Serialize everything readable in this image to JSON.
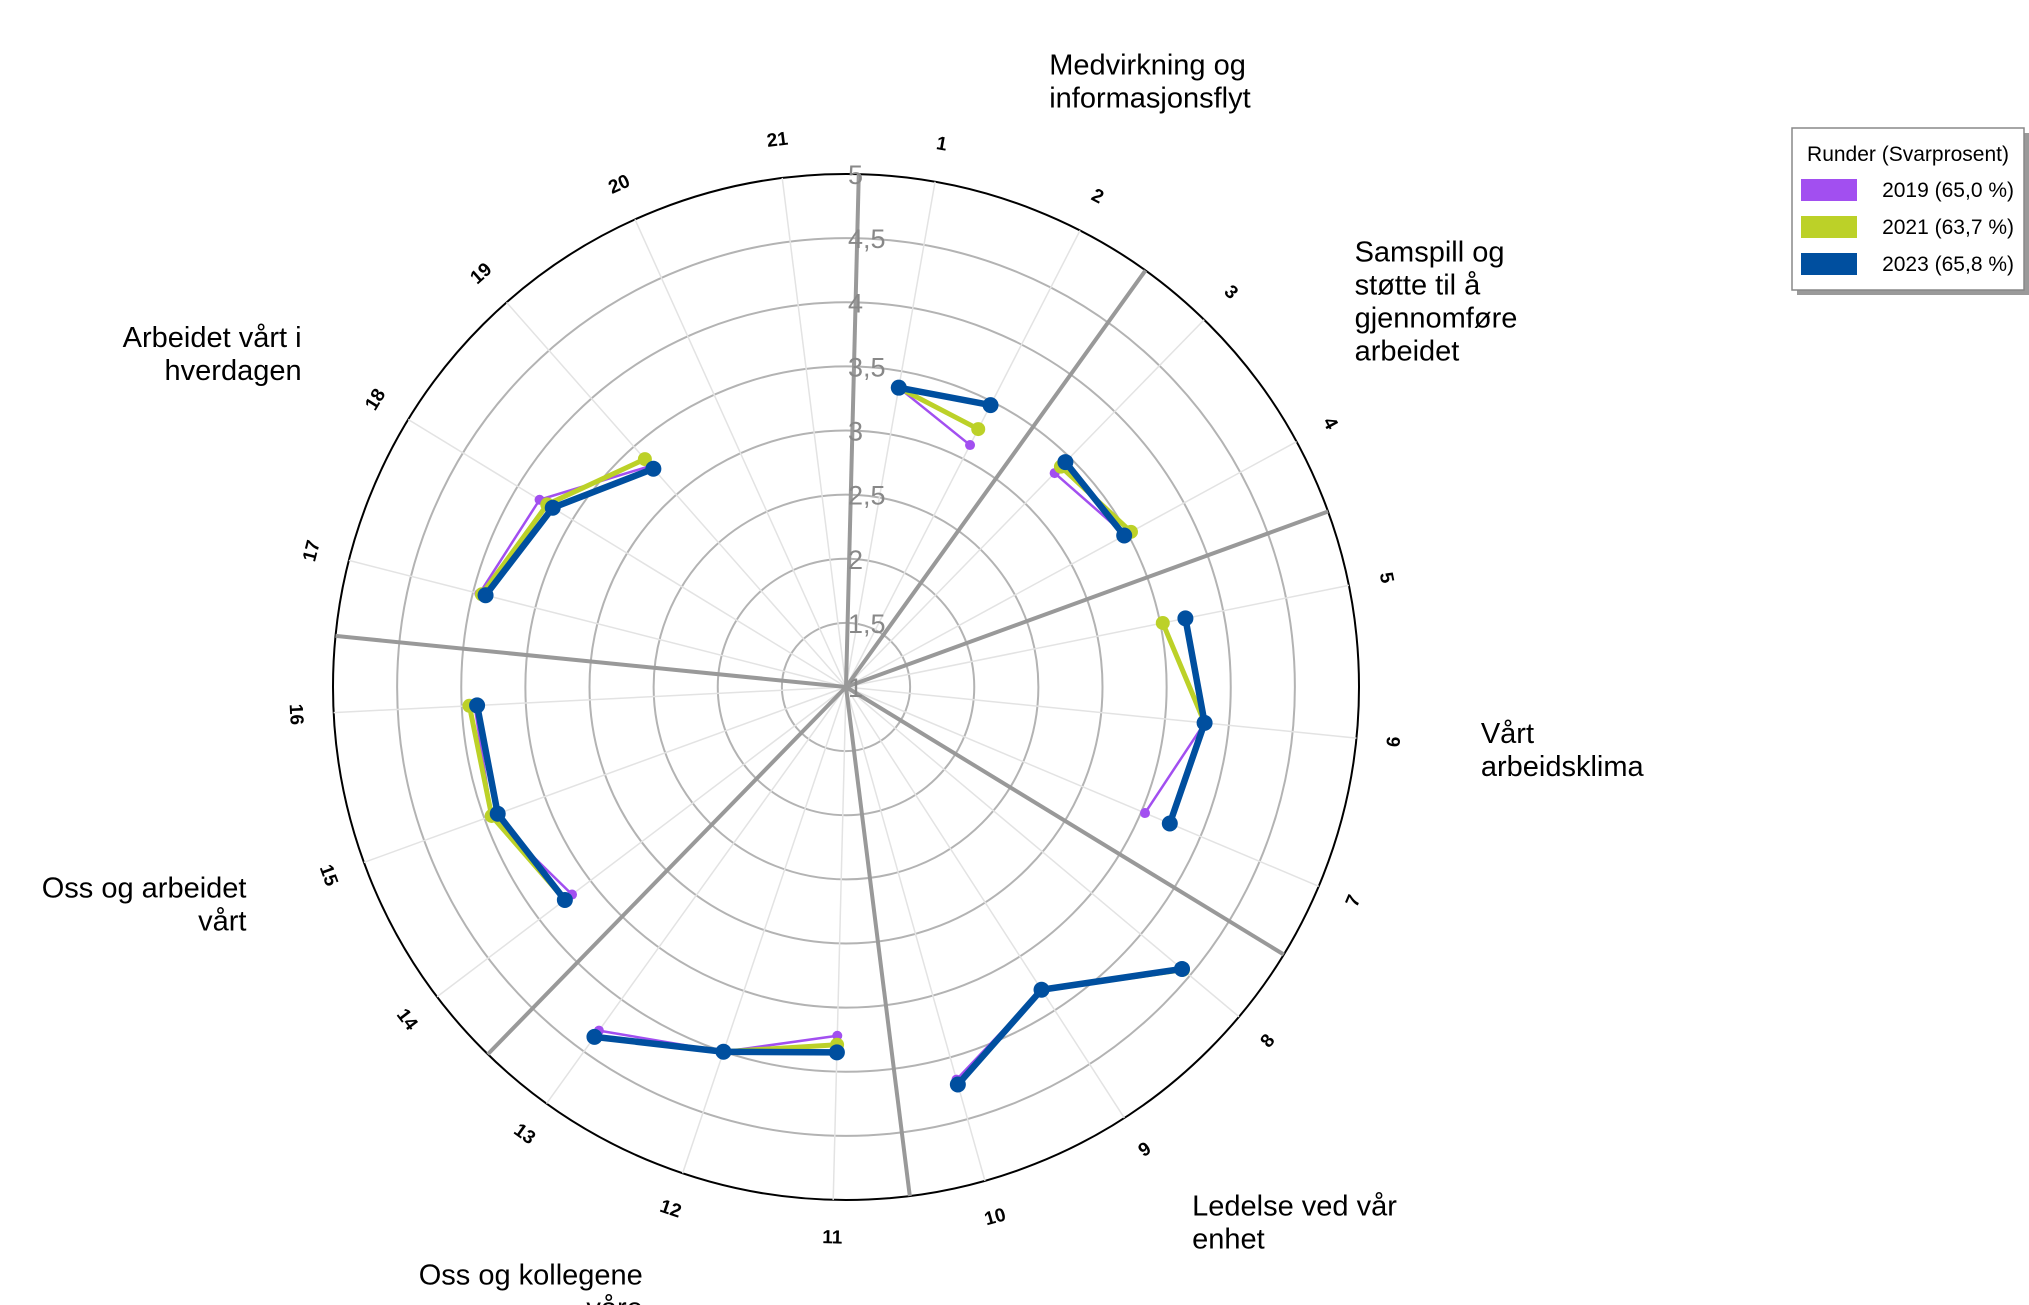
{
  "chart_data": {
    "type": "radar",
    "radial_range": [
      1,
      5
    ],
    "radial_ticks": [
      "1",
      "1,5",
      "2",
      "2,5",
      "3",
      "3,5",
      "4",
      "4,5",
      "5"
    ],
    "radial_tick_values": [
      1,
      1.5,
      2,
      2.5,
      3,
      3.5,
      4,
      4.5,
      5
    ],
    "questions": [
      "1",
      "2",
      "3",
      "4",
      "5",
      "6",
      "7",
      "8",
      "9",
      "10",
      "11",
      "12",
      "13",
      "14",
      "15",
      "16",
      "17",
      "18",
      "19",
      "20",
      "21"
    ],
    "categories": [
      {
        "name": "Medvirkning og informasjonsflyt",
        "lines": [
          "Medvirkning og",
          "informasjonsflyt"
        ],
        "questions": [
          "1",
          "2"
        ]
      },
      {
        "name": "Samspill og støtte til å gjennomføre arbeidet",
        "lines": [
          "Samspill og",
          "støtte til å",
          "gjennomføre",
          "arbeidet"
        ],
        "questions": [
          "3",
          "4"
        ]
      },
      {
        "name": "Vårt arbeidsklima",
        "lines": [
          "Vårt",
          "arbeidsklima"
        ],
        "questions": [
          "5",
          "6",
          "7"
        ]
      },
      {
        "name": "Ledelse ved vår enhet",
        "lines": [
          "Ledelse ved vår",
          "enhet"
        ],
        "questions": [
          "8",
          "9",
          "10"
        ]
      },
      {
        "name": "Oss og kollegene våre",
        "lines": [
          "Oss og kollegene",
          "våre"
        ],
        "questions": [
          "11",
          "12",
          "13"
        ]
      },
      {
        "name": "Oss og arbeidet vårt",
        "lines": [
          "Oss og arbeidet",
          "vårt"
        ],
        "questions": [
          "14",
          "15",
          "16"
        ]
      },
      {
        "name": "Arbeidet vårt i hverdagen",
        "lines": [
          "Arbeidet vårt i",
          "hverdagen"
        ],
        "questions": [
          "17",
          "18",
          "19"
        ]
      }
    ],
    "series": [
      {
        "name": "2019 (65,0 %)",
        "color": "#a24ff0",
        "groups": [
          {
            "questions": [
              "1",
              "2"
            ],
            "values": [
              3.37,
              3.12
            ]
          },
          {
            "questions": [
              "3",
              "4"
            ],
            "values": [
              3.33,
              3.48
            ]
          },
          {
            "questions": [
              "5",
              "6",
              "7"
            ],
            "values": [
              3.7,
              3.81,
              3.53
            ]
          },
          {
            "questions": [
              "8",
              "9",
              "10"
            ],
            "values": [
              4.42,
              3.81,
              4.18
            ]
          },
          {
            "questions": [
              "11",
              "12",
              "13"
            ],
            "values": [
              3.72,
              4.0,
              4.3
            ]
          },
          {
            "questions": [
              "14",
              "15",
              "16"
            ],
            "values": [
              3.68,
              3.94,
              3.9
            ]
          },
          {
            "questions": [
              "17",
              "18",
              "19"
            ],
            "values": [
              3.95,
              3.8,
              3.3
            ]
          }
        ]
      },
      {
        "name": "2021 (63,7 %)",
        "color": "#bcd128",
        "groups": [
          {
            "questions": [
              "1",
              "2"
            ],
            "values": [
              3.37,
              3.26
            ]
          },
          {
            "questions": [
              "3",
              "4"
            ],
            "values": [
              3.4,
              3.53
            ]
          },
          {
            "questions": [
              "5",
              "6",
              "7"
            ],
            "values": [
              3.52,
              3.81,
              3.74
            ]
          },
          {
            "questions": [
              "8",
              "9",
              "10"
            ],
            "values": [
              4.43,
              3.81,
              4.22
            ]
          },
          {
            "questions": [
              "11",
              "12",
              "13"
            ],
            "values": [
              3.79,
              4.0,
              4.36
            ]
          },
          {
            "questions": [
              "14",
              "15",
              "16"
            ],
            "values": [
              3.75,
              3.94,
              3.94
            ]
          },
          {
            "questions": [
              "17",
              "18",
              "19"
            ],
            "values": [
              3.93,
              3.73,
              3.37
            ]
          }
        ]
      },
      {
        "name": "2023 (65,8 %)",
        "color": "#004f9f",
        "groups": [
          {
            "questions": [
              "1",
              "2"
            ],
            "values": [
              3.37,
              3.47
            ]
          },
          {
            "questions": [
              "3",
              "4"
            ],
            "values": [
              3.45,
              3.47
            ]
          },
          {
            "questions": [
              "5",
              "6",
              "7"
            ],
            "values": [
              3.7,
              3.81,
              3.74
            ]
          },
          {
            "questions": [
              "8",
              "9",
              "10"
            ],
            "values": [
              4.42,
              3.81,
              4.22
            ]
          },
          {
            "questions": [
              "11",
              "12",
              "13"
            ],
            "values": [
              3.85,
              4.0,
              4.36
            ]
          },
          {
            "questions": [
              "14",
              "15",
              "16"
            ],
            "values": [
              3.75,
              3.89,
              3.88
            ]
          },
          {
            "questions": [
              "17",
              "18",
              "19"
            ],
            "values": [
              3.9,
              3.68,
              3.27
            ]
          }
        ]
      }
    ],
    "legend": {
      "title": "Runder (Svarprosent)",
      "position": "top-right"
    },
    "grid": true
  }
}
